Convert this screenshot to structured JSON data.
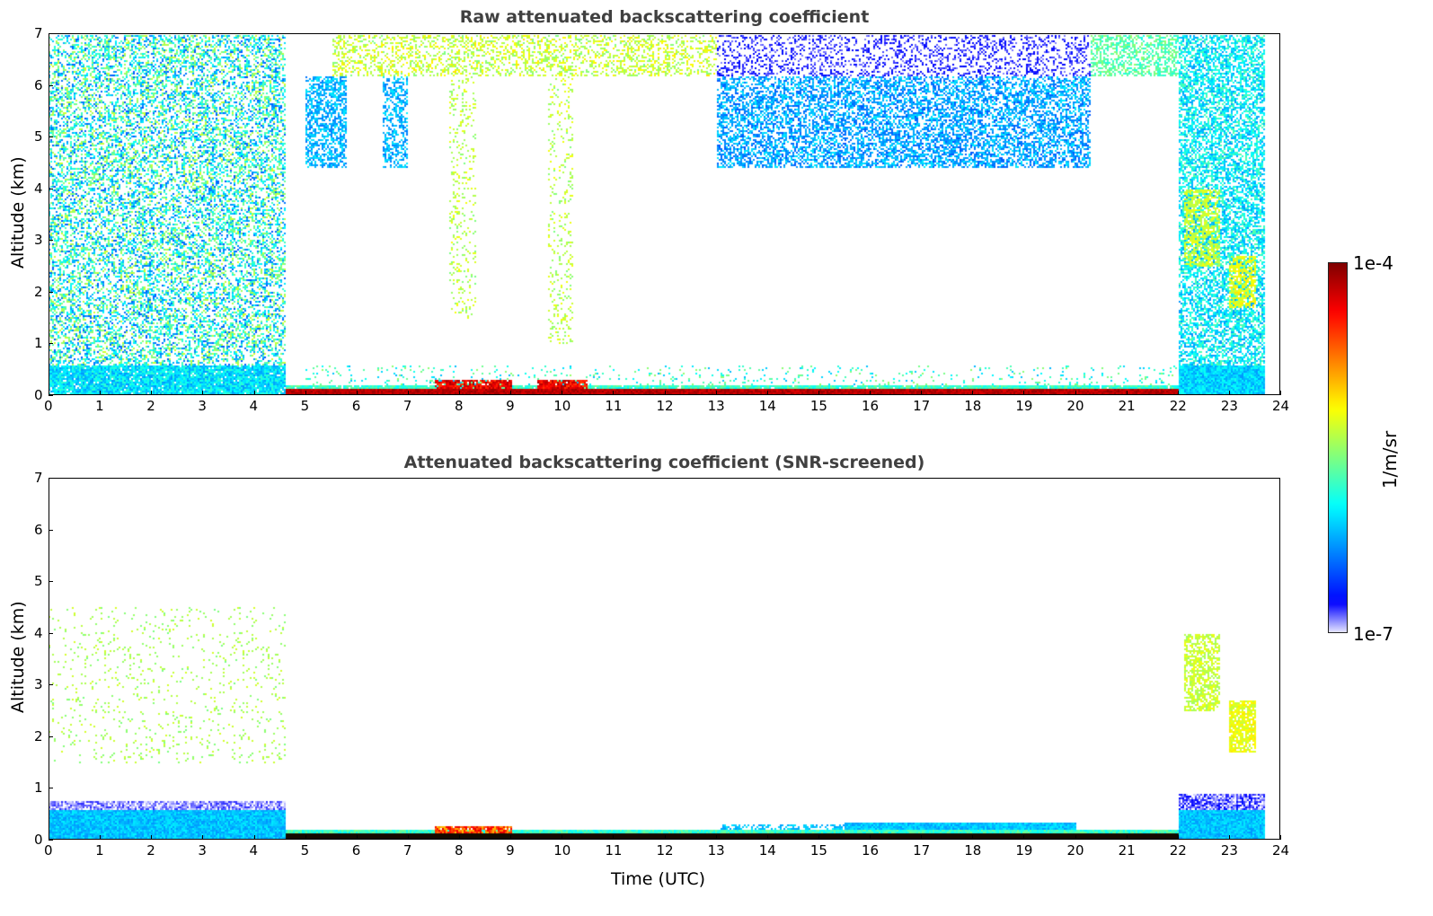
{
  "chart_data": [
    {
      "type": "heatmap",
      "title": "Raw attenuated backscattering coefficient",
      "xlabel": "",
      "ylabel": "Altitude (km)",
      "xlim": [
        0,
        24
      ],
      "ylim": [
        0,
        7
      ],
      "xticks": [
        "0",
        "1",
        "2",
        "3",
        "4",
        "5",
        "6",
        "7",
        "8",
        "9",
        "10",
        "11",
        "12",
        "13",
        "14",
        "15",
        "16",
        "17",
        "18",
        "19",
        "20",
        "21",
        "22",
        "23",
        "24"
      ],
      "yticks": [
        "0",
        "1",
        "2",
        "3",
        "4",
        "5",
        "6",
        "7"
      ],
      "features": [
        {
          "t": [
            0,
            4.6
          ],
          "alt": [
            0.6,
            7
          ],
          "log": [
            -6.5,
            -5.3
          ],
          "density": 0.45
        },
        {
          "t": [
            0,
            4.6
          ],
          "alt": [
            0,
            0.6
          ],
          "log": [
            -6.3,
            -5.8
          ],
          "density": 0.95
        },
        {
          "t": [
            4.6,
            22
          ],
          "alt": [
            0.15,
            0.22
          ],
          "log": [
            -6.0,
            -5.6
          ],
          "density": 0.95
        },
        {
          "t": [
            4.6,
            22
          ],
          "alt": [
            0,
            0.15
          ],
          "log": [
            -4.3,
            -4.05
          ],
          "density": 1
        },
        {
          "t": [
            7.5,
            9
          ],
          "alt": [
            0.15,
            0.3
          ],
          "log": [
            -4.6,
            -4.1
          ],
          "density": 0.9
        },
        {
          "t": [
            9.5,
            10.5
          ],
          "alt": [
            0.15,
            0.3
          ],
          "log": [
            -4.6,
            -4.1
          ],
          "density": 0.9
        },
        {
          "t": [
            5,
            22
          ],
          "alt": [
            0.22,
            0.6
          ],
          "log": [
            -6.2,
            -5.5
          ],
          "density": 0.08
        },
        {
          "t": [
            5,
            5.8
          ],
          "alt": [
            4.4,
            6.2
          ],
          "log": [
            -6.4,
            -6.0
          ],
          "density": 0.6
        },
        {
          "t": [
            6.5,
            7
          ],
          "alt": [
            4.4,
            6.2
          ],
          "log": [
            -6.4,
            -6.0
          ],
          "density": 0.5
        },
        {
          "t": [
            13,
            20.3
          ],
          "alt": [
            4.4,
            6.2
          ],
          "log": [
            -6.5,
            -6.0
          ],
          "density": 0.55
        },
        {
          "t": [
            13,
            20.3
          ],
          "alt": [
            6.2,
            7
          ],
          "log": [
            -6.9,
            -6.7
          ],
          "density": 0.3
        },
        {
          "t": [
            5.5,
            13
          ],
          "alt": [
            6.2,
            7
          ],
          "log": [
            -5.6,
            -5.1
          ],
          "density": 0.35
        },
        {
          "t": [
            7.8,
            8.3
          ],
          "alt": [
            1.5,
            6.2
          ],
          "log": [
            -5.6,
            -5.2
          ],
          "density": 0.15
        },
        {
          "t": [
            9.7,
            10.2
          ],
          "alt": [
            1,
            6.2
          ],
          "log": [
            -5.6,
            -5.2
          ],
          "density": 0.15
        },
        {
          "t": [
            20.3,
            22
          ],
          "alt": [
            6.2,
            7
          ],
          "log": [
            -5.9,
            -5.5
          ],
          "density": 0.5
        },
        {
          "t": [
            22,
            23.7
          ],
          "alt": [
            0.6,
            7
          ],
          "log": [
            -6.3,
            -5.7
          ],
          "density": 0.6
        },
        {
          "t": [
            22,
            23.7
          ],
          "alt": [
            0,
            0.6
          ],
          "log": [
            -6.3,
            -5.9
          ],
          "density": 1
        },
        {
          "t": [
            22.1,
            22.8
          ],
          "alt": [
            2.5,
            4
          ],
          "log": [
            -5.5,
            -5.2
          ],
          "density": 0.6
        },
        {
          "t": [
            23,
            23.5
          ],
          "alt": [
            1.7,
            2.7
          ],
          "log": [
            -5.4,
            -5.1
          ],
          "density": 0.7
        }
      ]
    },
    {
      "type": "heatmap",
      "title": "Attenuated backscattering coefficient (SNR-screened)",
      "xlabel": "Time (UTC)",
      "ylabel": "Altitude (km)",
      "xlim": [
        0,
        24
      ],
      "ylim": [
        0,
        7
      ],
      "xticks": [
        "0",
        "1",
        "2",
        "3",
        "4",
        "5",
        "6",
        "7",
        "8",
        "9",
        "10",
        "11",
        "12",
        "13",
        "14",
        "15",
        "16",
        "17",
        "18",
        "19",
        "20",
        "21",
        "22",
        "23",
        "24"
      ],
      "yticks": [
        "0",
        "1",
        "2",
        "3",
        "4",
        "5",
        "6",
        "7"
      ],
      "features": [
        {
          "t": [
            0,
            4.6
          ],
          "alt": [
            1.5,
            4.5
          ],
          "log": [
            -5.6,
            -5.3
          ],
          "density": 0.06
        },
        {
          "t": [
            0,
            4.6
          ],
          "alt": [
            0.6,
            0.75
          ],
          "log": [
            -7,
            -6.8
          ],
          "density": 0.8
        },
        {
          "t": [
            0,
            4.6
          ],
          "alt": [
            0,
            0.6
          ],
          "log": [
            -6.3,
            -6.0
          ],
          "density": 1
        },
        {
          "t": [
            4.6,
            22
          ],
          "alt": [
            0.15,
            0.22
          ],
          "log": [
            -6.0,
            -5.6
          ],
          "density": 1
        },
        {
          "t": [
            4.6,
            22
          ],
          "alt": [
            0,
            0.15
          ],
          "log": [
            -4.0,
            -4.0
          ],
          "density": 1
        },
        {
          "t": [
            7.5,
            9
          ],
          "alt": [
            0.15,
            0.28
          ],
          "log": [
            -5,
            -4.3
          ],
          "density": 0.9
        },
        {
          "t": [
            15.5,
            20
          ],
          "alt": [
            0.22,
            0.35
          ],
          "log": [
            -6.3,
            -6.0
          ],
          "density": 1
        },
        {
          "t": [
            13,
            15.5
          ],
          "alt": [
            0.22,
            0.3
          ],
          "log": [
            -6.3,
            -6.0
          ],
          "density": 0.5
        },
        {
          "t": [
            22,
            23.7
          ],
          "alt": [
            0.6,
            0.9
          ],
          "log": [
            -7,
            -6.7
          ],
          "density": 0.8
        },
        {
          "t": [
            22,
            23.7
          ],
          "alt": [
            0,
            0.6
          ],
          "log": [
            -6.3,
            -6.0
          ],
          "density": 1
        },
        {
          "t": [
            22.1,
            22.8
          ],
          "alt": [
            2.5,
            4
          ],
          "log": [
            -5.5,
            -5.2
          ],
          "density": 0.6
        },
        {
          "t": [
            23,
            23.5
          ],
          "alt": [
            1.7,
            2.7
          ],
          "log": [
            -5.4,
            -5.1
          ],
          "density": 0.8
        }
      ]
    }
  ],
  "colorbar": {
    "label": "1/m/sr",
    "max_label": "1e-4",
    "min_label": "1e-7",
    "log_range": [
      -7,
      -4
    ],
    "colormap": "jet"
  }
}
